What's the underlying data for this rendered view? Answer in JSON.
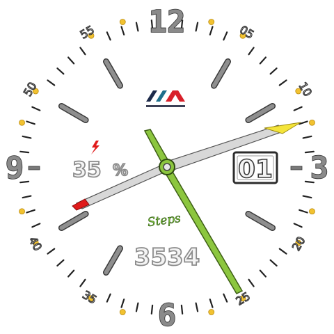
{
  "watch": {
    "hour_numerals": {
      "twelve": "12",
      "three": "3",
      "six": "6",
      "nine": "9"
    },
    "minute_labels": [
      "05",
      "10",
      "20",
      "25",
      "35",
      "40",
      "50",
      "55"
    ],
    "battery": {
      "value": "35",
      "unit": "%",
      "icon": "lightning-bolt-icon"
    },
    "steps": {
      "label": "Steps",
      "count": "3534"
    },
    "date": {
      "day": "01"
    },
    "logo": {
      "icon": "brand-logo-icon"
    },
    "time": {
      "hours": 2,
      "minutes": 25,
      "seconds": 13.5
    },
    "colors": {
      "accent_green": "#8cc63f",
      "marker_yellow": "#f2c230",
      "battery_red": "#e01b1b",
      "numeral_gray": "#8a8a8a"
    }
  }
}
